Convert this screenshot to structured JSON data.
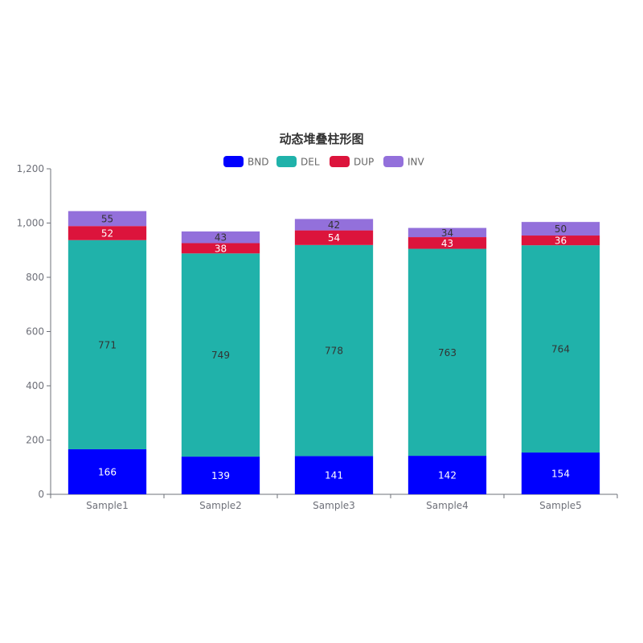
{
  "chart_data": {
    "type": "bar",
    "stacked": true,
    "title": "动态堆叠柱形图",
    "categories": [
      "Sample1",
      "Sample2",
      "Sample3",
      "Sample4",
      "Sample5"
    ],
    "series": [
      {
        "name": "BND",
        "color": "#0000ff",
        "label_color": "#ffffff",
        "values": [
          166,
          139,
          141,
          142,
          154
        ]
      },
      {
        "name": "DEL",
        "color": "#20b2aa",
        "label_color": "#333333",
        "values": [
          771,
          749,
          778,
          763,
          764
        ]
      },
      {
        "name": "DUP",
        "color": "#dc143c",
        "label_color": "#ffffff",
        "values": [
          52,
          38,
          54,
          43,
          36
        ]
      },
      {
        "name": "INV",
        "color": "#9370db",
        "label_color": "#333333",
        "values": [
          55,
          43,
          42,
          34,
          50
        ]
      }
    ],
    "y_ticks": [
      "0",
      "200",
      "400",
      "600",
      "800",
      "1,000",
      "1,200"
    ],
    "ylim": [
      0,
      1200
    ],
    "xlabel": "",
    "ylabel": "",
    "legend_position": "top-center",
    "grid": false
  }
}
